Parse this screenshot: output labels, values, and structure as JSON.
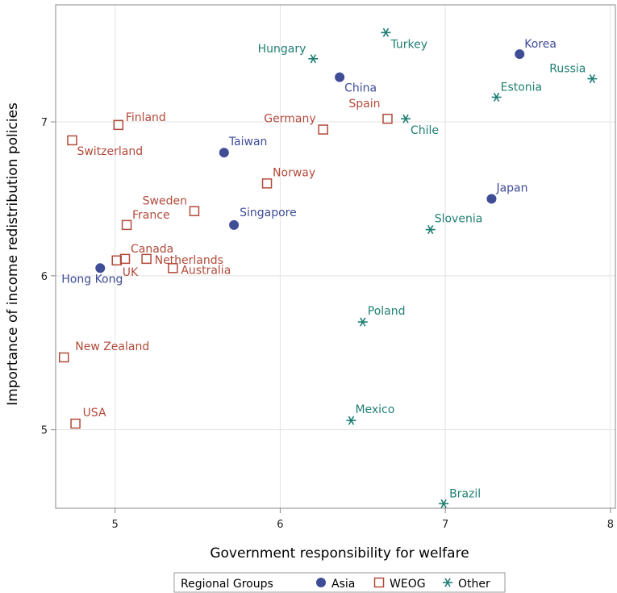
{
  "colors": {
    "asia": "#3f4c96",
    "weog": "#b24a3a",
    "other": "#1f7f74",
    "grid": "#e3e3e3",
    "frame": "#888888"
  },
  "chart_data": {
    "type": "scatter",
    "xlabel": "Government responsibility for welfare",
    "ylabel": "Importance of income redistribution policies",
    "xlim": [
      4.64,
      8.03
    ],
    "ylim": [
      4.49,
      7.76
    ],
    "xticks": [
      5,
      6,
      7,
      8
    ],
    "yticks": [
      5,
      6,
      7
    ],
    "grid": true,
    "legend": {
      "title": "Regional Groups",
      "placement": "bottom",
      "entries": [
        {
          "key": "asia",
          "label": "Asia",
          "marker": "filled-circle"
        },
        {
          "key": "weog",
          "label": "WEOG",
          "marker": "open-square"
        },
        {
          "key": "other",
          "label": "Other",
          "marker": "star"
        }
      ]
    },
    "series": [
      {
        "key": "asia",
        "name": "Asia",
        "points": [
          {
            "label": "Korea",
            "x": 7.45,
            "y": 7.44
          },
          {
            "label": "China",
            "x": 6.36,
            "y": 7.29
          },
          {
            "label": "Taiwan",
            "x": 5.66,
            "y": 6.8
          },
          {
            "label": "Japan",
            "x": 7.28,
            "y": 6.5
          },
          {
            "label": "Singapore",
            "x": 5.72,
            "y": 6.33
          },
          {
            "label": "Hong Kong",
            "x": 4.91,
            "y": 6.05
          }
        ]
      },
      {
        "key": "weog",
        "name": "WEOG",
        "points": [
          {
            "label": "Spain",
            "x": 6.65,
            "y": 7.02
          },
          {
            "label": "Finland",
            "x": 5.02,
            "y": 6.98
          },
          {
            "label": "Germany",
            "x": 6.26,
            "y": 6.95
          },
          {
            "label": "Switzerland",
            "x": 4.74,
            "y": 6.88
          },
          {
            "label": "Norway",
            "x": 5.92,
            "y": 6.6
          },
          {
            "label": "Sweden",
            "x": 5.48,
            "y": 6.42
          },
          {
            "label": "France",
            "x": 5.07,
            "y": 6.33
          },
          {
            "label": "Canada",
            "x": 5.06,
            "y": 6.11
          },
          {
            "label": "Netherlands",
            "x": 5.19,
            "y": 6.11
          },
          {
            "label": "UK",
            "x": 5.01,
            "y": 6.1
          },
          {
            "label": "Australia",
            "x": 5.35,
            "y": 6.05
          },
          {
            "label": "New Zealand",
            "x": 4.69,
            "y": 5.47
          },
          {
            "label": "USA",
            "x": 4.76,
            "y": 5.04
          }
        ]
      },
      {
        "key": "other",
        "name": "Other",
        "points": [
          {
            "label": "Turkey",
            "x": 6.64,
            "y": 7.58
          },
          {
            "label": "Hungary",
            "x": 6.2,
            "y": 7.41
          },
          {
            "label": "Russia",
            "x": 7.89,
            "y": 7.28
          },
          {
            "label": "Estonia",
            "x": 7.31,
            "y": 7.16
          },
          {
            "label": "Chile",
            "x": 6.76,
            "y": 7.02
          },
          {
            "label": "Slovenia",
            "x": 6.91,
            "y": 6.3
          },
          {
            "label": "Poland",
            "x": 6.5,
            "y": 5.7
          },
          {
            "label": "Mexico",
            "x": 6.43,
            "y": 5.06
          },
          {
            "label": "Brazil",
            "x": 6.99,
            "y": 4.52
          }
        ]
      }
    ]
  }
}
